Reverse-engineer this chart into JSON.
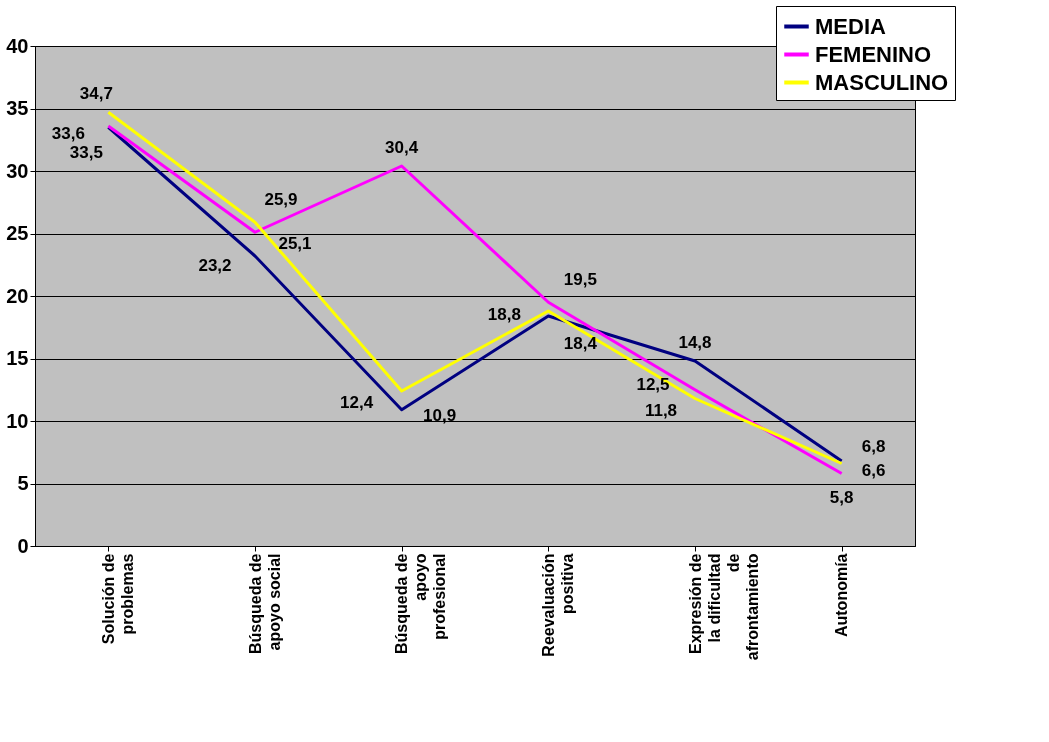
{
  "chart_data": {
    "type": "line",
    "categories": [
      "Solución de\nproblemas",
      "Búsqueda de\napoyo social",
      "Búsqueda de\napoyo\nprofesional",
      "Reevaluación\npositiva",
      "Expresión de\nla dificultad\nde\nafrontamiento",
      "Autonomía"
    ],
    "series": [
      {
        "name": "MEDIA",
        "color": "#000080",
        "values": [
          33.5,
          23.2,
          10.9,
          18.4,
          14.8,
          6.8
        ],
        "value_labels": [
          "33,5",
          "23,2",
          "10,9",
          "18,4",
          "14,8",
          "6,8"
        ]
      },
      {
        "name": "FEMENINO",
        "color": "#ff00ff",
        "values": [
          33.6,
          25.1,
          30.4,
          19.5,
          12.5,
          5.8
        ],
        "value_labels": [
          "33,6",
          "25,1",
          "30,4",
          "19,5",
          "12,5",
          "5,8"
        ]
      },
      {
        "name": "MASCULINO",
        "color": "#ffff00",
        "values": [
          34.7,
          25.9,
          12.4,
          18.8,
          11.8,
          6.6
        ],
        "value_labels": [
          "34,7",
          "25,9",
          "12,4",
          "18,8",
          "11,8",
          "6,6"
        ]
      }
    ],
    "ylim": [
      0,
      40
    ],
    "yticks": [
      0,
      5,
      10,
      15,
      20,
      25,
      30,
      35,
      40
    ],
    "grid": "y",
    "legend": "top right",
    "marker": "none",
    "line_style": "solid"
  }
}
